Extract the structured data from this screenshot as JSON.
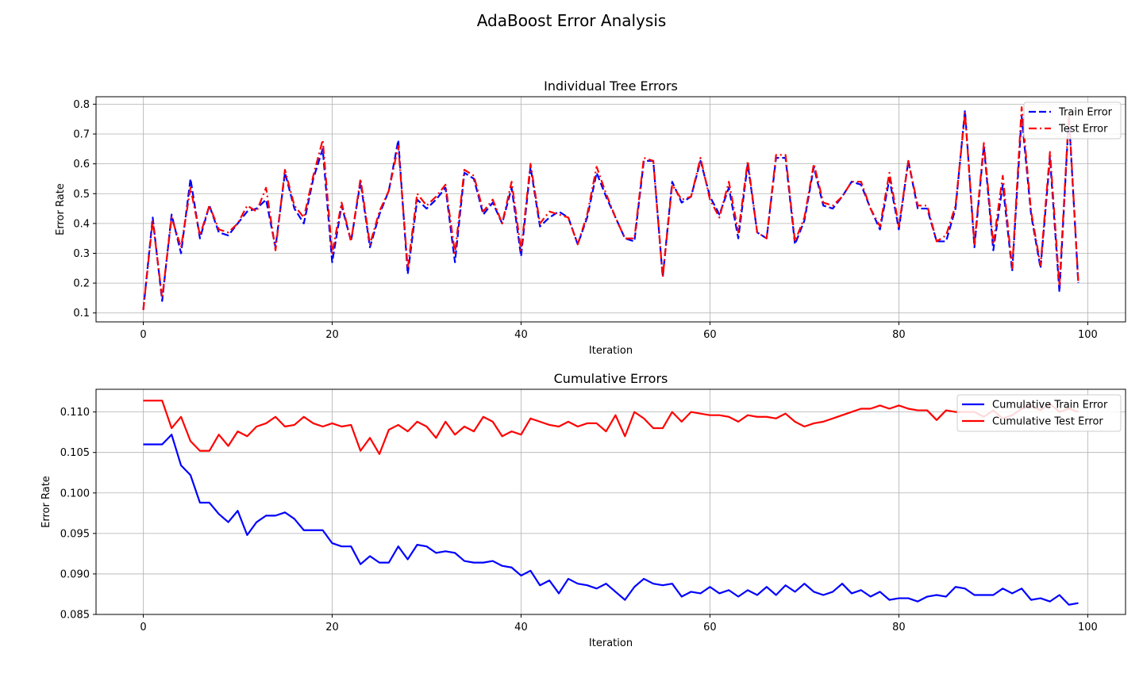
{
  "figure": {
    "suptitle": "AdaBoost Error Analysis"
  },
  "chart_data": [
    {
      "type": "line",
      "title": "Individual Tree Errors",
      "xlabel": "Iteration",
      "ylabel": "Error Rate",
      "xlim": [
        -5,
        104
      ],
      "ylim": [
        0.07,
        0.825
      ],
      "xticks": [
        0,
        20,
        40,
        60,
        80,
        100
      ],
      "yticks": [
        0.1,
        0.2,
        0.3,
        0.4,
        0.5,
        0.6,
        0.7,
        0.8
      ],
      "grid": true,
      "legend": "top-right",
      "x": [
        0,
        1,
        2,
        3,
        4,
        5,
        6,
        7,
        8,
        9,
        10,
        11,
        12,
        13,
        14,
        15,
        16,
        17,
        18,
        19,
        20,
        21,
        22,
        23,
        24,
        25,
        26,
        27,
        28,
        29,
        30,
        31,
        32,
        33,
        34,
        35,
        36,
        37,
        38,
        39,
        40,
        41,
        42,
        43,
        44,
        45,
        46,
        47,
        48,
        49,
        50,
        51,
        52,
        53,
        54,
        55,
        56,
        57,
        58,
        59,
        60,
        61,
        62,
        63,
        64,
        65,
        66,
        67,
        68,
        69,
        70,
        71,
        72,
        73,
        74,
        75,
        76,
        77,
        78,
        79,
        80,
        81,
        82,
        83,
        84,
        85,
        86,
        87,
        88,
        89,
        90,
        91,
        92,
        93,
        94,
        95,
        96,
        97,
        98,
        99
      ],
      "series": [
        {
          "name": "Train Error",
          "color": "#0000ff",
          "dash": "dashed",
          "values": [
            0.11,
            0.42,
            0.14,
            0.43,
            0.3,
            0.55,
            0.35,
            0.46,
            0.37,
            0.36,
            0.4,
            0.44,
            0.45,
            0.48,
            0.32,
            0.57,
            0.45,
            0.4,
            0.55,
            0.65,
            0.27,
            0.46,
            0.34,
            0.54,
            0.32,
            0.43,
            0.51,
            0.68,
            0.23,
            0.48,
            0.45,
            0.48,
            0.52,
            0.27,
            0.57,
            0.55,
            0.43,
            0.47,
            0.4,
            0.52,
            0.29,
            0.59,
            0.39,
            0.42,
            0.44,
            0.42,
            0.33,
            0.42,
            0.57,
            0.49,
            0.42,
            0.35,
            0.34,
            0.61,
            0.61,
            0.22,
            0.54,
            0.47,
            0.49,
            0.61,
            0.49,
            0.43,
            0.52,
            0.35,
            0.6,
            0.37,
            0.35,
            0.62,
            0.62,
            0.33,
            0.41,
            0.59,
            0.46,
            0.45,
            0.49,
            0.54,
            0.53,
            0.45,
            0.38,
            0.55,
            0.38,
            0.61,
            0.45,
            0.45,
            0.34,
            0.34,
            0.45,
            0.78,
            0.32,
            0.66,
            0.31,
            0.53,
            0.24,
            0.76,
            0.43,
            0.25,
            0.62,
            0.17,
            0.76,
            0.2
          ]
        },
        {
          "name": "Test Error",
          "color": "#ff0000",
          "dash": "dashdot",
          "values": [
            0.11,
            0.41,
            0.15,
            0.42,
            0.32,
            0.52,
            0.36,
            0.46,
            0.38,
            0.37,
            0.4,
            0.46,
            0.44,
            0.52,
            0.31,
            0.58,
            0.46,
            0.42,
            0.56,
            0.68,
            0.3,
            0.47,
            0.34,
            0.55,
            0.33,
            0.44,
            0.51,
            0.66,
            0.25,
            0.5,
            0.46,
            0.49,
            0.53,
            0.3,
            0.58,
            0.56,
            0.44,
            0.48,
            0.4,
            0.54,
            0.31,
            0.6,
            0.4,
            0.44,
            0.43,
            0.42,
            0.33,
            0.43,
            0.59,
            0.5,
            0.42,
            0.35,
            0.35,
            0.62,
            0.61,
            0.22,
            0.53,
            0.48,
            0.49,
            0.62,
            0.48,
            0.42,
            0.54,
            0.37,
            0.61,
            0.37,
            0.35,
            0.63,
            0.63,
            0.34,
            0.42,
            0.6,
            0.47,
            0.46,
            0.49,
            0.54,
            0.54,
            0.45,
            0.39,
            0.57,
            0.39,
            0.61,
            0.46,
            0.46,
            0.34,
            0.36,
            0.46,
            0.77,
            0.33,
            0.67,
            0.33,
            0.56,
            0.25,
            0.79,
            0.44,
            0.26,
            0.64,
            0.19,
            0.77,
            0.2
          ]
        }
      ]
    },
    {
      "type": "line",
      "title": "Cumulative Errors",
      "xlabel": "Iteration",
      "ylabel": "Error Rate",
      "xlim": [
        -5,
        104
      ],
      "ylim": [
        0.085,
        0.1128
      ],
      "xticks": [
        0,
        20,
        40,
        60,
        80,
        100
      ],
      "yticks": [
        0.085,
        0.09,
        0.095,
        0.1,
        0.105,
        0.11
      ],
      "ytick_labels": [
        "0.085",
        "0.090",
        "0.095",
        "0.100",
        "0.105",
        "0.110"
      ],
      "grid": true,
      "legend": "top-right",
      "x": [
        0,
        1,
        2,
        3,
        4,
        5,
        6,
        7,
        8,
        9,
        10,
        11,
        12,
        13,
        14,
        15,
        16,
        17,
        18,
        19,
        20,
        21,
        22,
        23,
        24,
        25,
        26,
        27,
        28,
        29,
        30,
        31,
        32,
        33,
        34,
        35,
        36,
        37,
        38,
        39,
        40,
        41,
        42,
        43,
        44,
        45,
        46,
        47,
        48,
        49,
        50,
        51,
        52,
        53,
        54,
        55,
        56,
        57,
        58,
        59,
        60,
        61,
        62,
        63,
        64,
        65,
        66,
        67,
        68,
        69,
        70,
        71,
        72,
        73,
        74,
        75,
        76,
        77,
        78,
        79,
        80,
        81,
        82,
        83,
        84,
        85,
        86,
        87,
        88,
        89,
        90,
        91,
        92,
        93,
        94,
        95,
        96,
        97,
        98,
        99
      ],
      "series": [
        {
          "name": "Cumulative Train Error",
          "color": "#0000ff",
          "dash": "solid",
          "values": [
            0.106,
            0.106,
            0.106,
            0.1072,
            0.1034,
            0.1022,
            0.0988,
            0.0988,
            0.0974,
            0.0964,
            0.0978,
            0.0948,
            0.0964,
            0.0972,
            0.0972,
            0.0976,
            0.0968,
            0.0954,
            0.0954,
            0.0954,
            0.0938,
            0.0934,
            0.0934,
            0.0912,
            0.0922,
            0.0914,
            0.0914,
            0.0934,
            0.0918,
            0.0936,
            0.0934,
            0.0926,
            0.0928,
            0.0926,
            0.0916,
            0.0914,
            0.0914,
            0.0916,
            0.091,
            0.0908,
            0.0898,
            0.0904,
            0.0886,
            0.0892,
            0.0876,
            0.0894,
            0.0888,
            0.0886,
            0.0882,
            0.0888,
            0.0878,
            0.0868,
            0.0884,
            0.0894,
            0.0888,
            0.0886,
            0.0888,
            0.0872,
            0.0878,
            0.0876,
            0.0884,
            0.0876,
            0.088,
            0.0872,
            0.088,
            0.0874,
            0.0884,
            0.0874,
            0.0886,
            0.0878,
            0.0888,
            0.0878,
            0.0874,
            0.0878,
            0.0888,
            0.0876,
            0.088,
            0.0872,
            0.0878,
            0.0868,
            0.087,
            0.087,
            0.0866,
            0.0872,
            0.0874,
            0.0872,
            0.0884,
            0.0882,
            0.0874,
            0.0874,
            0.0874,
            0.0882,
            0.0876,
            0.0882,
            0.0868,
            0.087,
            0.0866,
            0.0874,
            0.0862,
            0.0864
          ]
        },
        {
          "name": "Cumulative Test Error",
          "color": "#ff0000",
          "dash": "solid",
          "values": [
            0.1114,
            0.1114,
            0.1114,
            0.108,
            0.1094,
            0.1064,
            0.1052,
            0.1052,
            0.1072,
            0.1058,
            0.1076,
            0.107,
            0.1082,
            0.1086,
            0.1094,
            0.1082,
            0.1084,
            0.1094,
            0.1086,
            0.1082,
            0.1086,
            0.1082,
            0.1084,
            0.1052,
            0.1068,
            0.1048,
            0.1078,
            0.1084,
            0.1076,
            0.1088,
            0.1082,
            0.1068,
            0.1088,
            0.1072,
            0.1082,
            0.1076,
            0.1094,
            0.1088,
            0.107,
            0.1076,
            0.1072,
            0.1092,
            0.1088,
            0.1084,
            0.1082,
            0.1088,
            0.1082,
            0.1086,
            0.1086,
            0.1076,
            0.1096,
            0.107,
            0.11,
            0.1092,
            0.108,
            0.108,
            0.11,
            0.1088,
            0.11,
            0.1098,
            0.1096,
            0.1096,
            0.1094,
            0.1088,
            0.1096,
            0.1094,
            0.1094,
            0.1092,
            0.1098,
            0.1088,
            0.1082,
            0.1086,
            0.1088,
            0.1092,
            0.1096,
            0.11,
            0.1104,
            0.1104,
            0.1108,
            0.1104,
            0.1108,
            0.1104,
            0.1102,
            0.1102,
            0.109,
            0.1102,
            0.11,
            0.11,
            0.11,
            0.1094,
            0.1102,
            0.1092,
            0.1096,
            0.1104,
            0.1108,
            0.1102,
            0.111,
            0.11,
            0.1104,
            0.11
          ]
        }
      ]
    }
  ]
}
